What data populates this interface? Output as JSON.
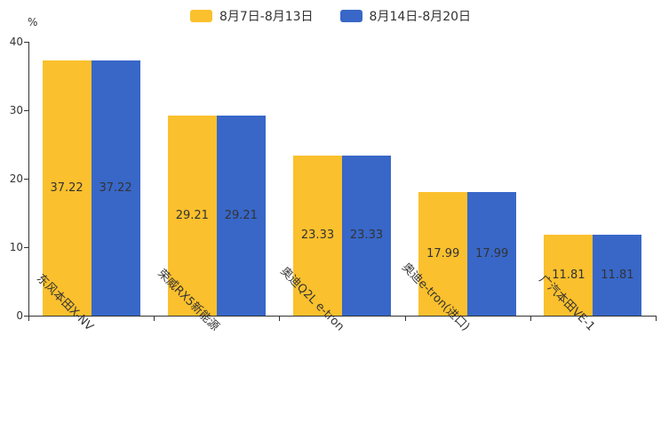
{
  "chart_data": {
    "type": "bar",
    "title": "",
    "xlabel": "",
    "ylabel": "%",
    "categories": [
      "东风本田X-NV",
      "荣威RX5新能源",
      "奥迪Q2L e-tron",
      "奥迪e-tron(进口)",
      "广汽本田VE-1"
    ],
    "series": [
      {
        "name": "8月7日-8月13日",
        "color": "#FBC02D",
        "values": [
          37.22,
          29.21,
          23.33,
          17.99,
          11.81
        ]
      },
      {
        "name": "8月14日-8月20日",
        "color": "#3867C8",
        "values": [
          37.22,
          29.21,
          23.33,
          17.99,
          11.81
        ]
      }
    ],
    "ylim": [
      0,
      40
    ],
    "yticks": [
      0,
      10,
      20,
      30,
      40
    ],
    "grid": false,
    "legend_position": "top-center",
    "value_labels": "inside-center",
    "value_label_color": "#333333",
    "axis_color": "#333333",
    "background": "#ffffff"
  }
}
